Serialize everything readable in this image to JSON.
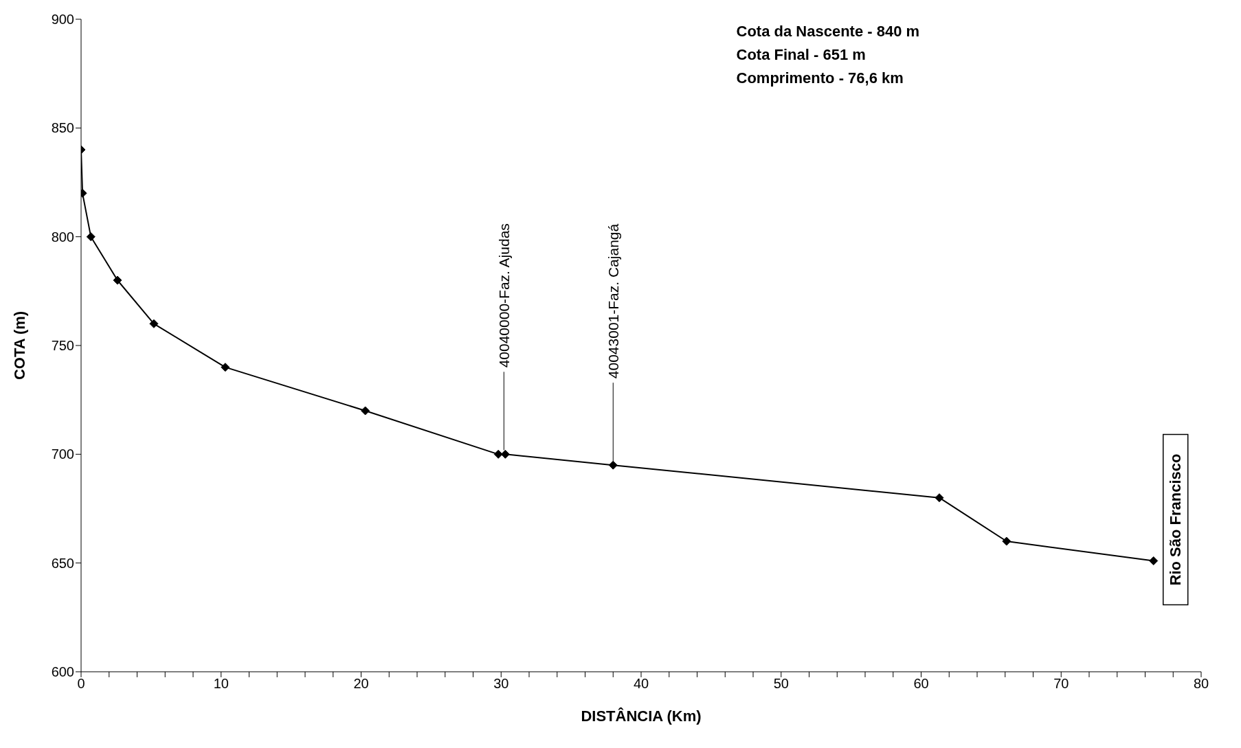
{
  "chart_data": {
    "type": "line",
    "xlabel": "DISTÂNCIA (Km)",
    "ylabel": "COTA (m)",
    "x": [
      0,
      0.1,
      0.7,
      2.6,
      5.2,
      10.3,
      20.3,
      29.8,
      30.3,
      38,
      61.3,
      66.1,
      76.6
    ],
    "series": [
      {
        "color": "#000000",
        "values": [
          840,
          820,
          800,
          780,
          760,
          740,
          720,
          700,
          700,
          695,
          680,
          660,
          651
        ]
      }
    ],
    "xlim": [
      0,
      80
    ],
    "xticks": [
      0,
      {
        "value": 2,
        "label": null
      },
      {
        "value": 4,
        "label": null
      },
      {
        "value": 6,
        "label": null
      },
      {
        "value": 8,
        "label": null
      },
      10,
      {
        "value": 12,
        "label": null
      },
      {
        "value": 14,
        "label": null
      },
      {
        "value": 16,
        "label": null
      },
      {
        "value": 18,
        "label": null
      },
      20,
      {
        "value": 22,
        "label": null
      },
      {
        "value": 24,
        "label": null
      },
      {
        "value": 26,
        "label": null
      },
      {
        "value": 28,
        "label": null
      },
      30,
      {
        "value": 32,
        "label": null
      },
      {
        "value": 34,
        "label": null
      },
      {
        "value": 36,
        "label": null
      },
      {
        "value": 38,
        "label": null
      },
      40,
      {
        "value": 42,
        "label": null
      },
      {
        "value": 44,
        "label": null
      },
      {
        "value": 46,
        "label": null
      },
      {
        "value": 48,
        "label": null
      },
      50,
      {
        "value": 52,
        "label": null
      },
      {
        "value": 54,
        "label": null
      },
      {
        "value": 56,
        "label": null
      },
      {
        "value": 58,
        "label": null
      },
      60,
      {
        "value": 62,
        "label": null
      },
      {
        "value": 64,
        "label": null
      },
      {
        "value": 66,
        "label": null
      },
      {
        "value": 68,
        "label": null
      },
      70,
      {
        "value": 72,
        "label": null
      },
      {
        "value": 74,
        "label": null
      },
      {
        "value": 76,
        "label": null
      },
      {
        "value": 78,
        "label": null
      },
      80
    ],
    "ylim": [
      600,
      900
    ],
    "yticks": [
      600,
      650,
      700,
      750,
      800,
      850,
      900
    ],
    "grid": false,
    "legend": false,
    "marker": "diamond",
    "line_style": "solid",
    "annotations": [
      "Cota da Nascente - 840 m",
      "Cota Final - 651 m",
      "Comprimento - 76,6 km",
      {
        "text": "40040000-Faz. Ajudas",
        "x": 30.2,
        "y": 700
      },
      {
        "text": "40043001-Faz. Cajangá",
        "x": 38,
        "y": 695
      },
      {
        "text": "Rio São Francisco",
        "x": 76.6,
        "y": 651
      }
    ]
  }
}
